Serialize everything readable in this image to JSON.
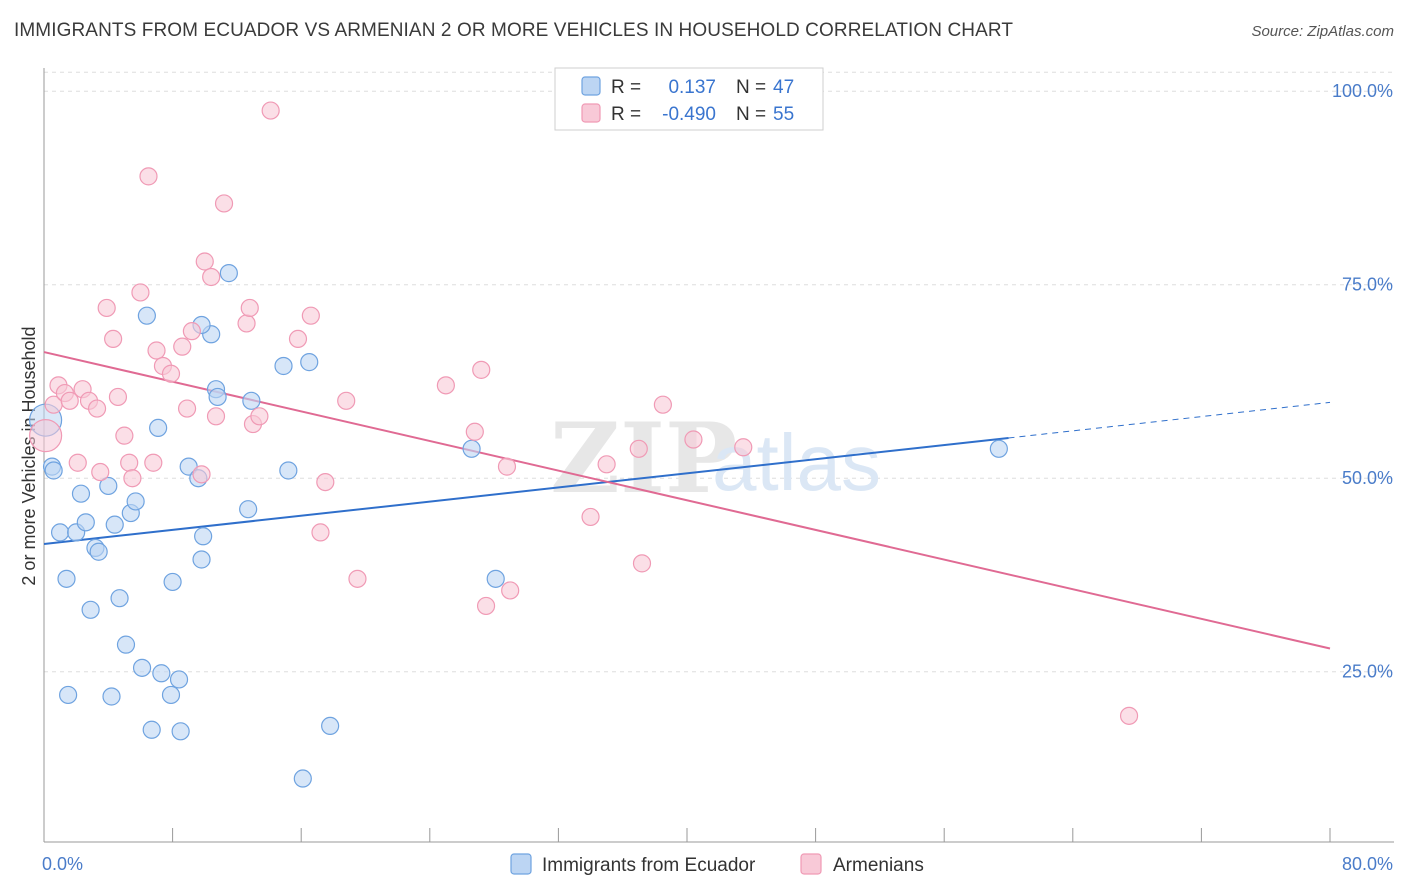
{
  "title": "IMMIGRANTS FROM ECUADOR VS ARMENIAN 2 OR MORE VEHICLES IN HOUSEHOLD CORRELATION CHART",
  "source": "Source: ZipAtlas.com",
  "watermark": {
    "zip": "ZIP",
    "atlas": "atlas"
  },
  "chart_data": {
    "type": "scatter",
    "title": "IMMIGRANTS FROM ECUADOR VS ARMENIAN 2 OR MORE VEHICLES IN HOUSEHOLD CORRELATION CHART",
    "xlabel": "",
    "ylabel": "2 or more Vehicles in Household",
    "xlim": [
      0,
      80
    ],
    "ylim": [
      3,
      103
    ],
    "x_tick_labels": [
      {
        "value": 0,
        "label": "0.0%"
      },
      {
        "value": 80,
        "label": "80.0%"
      }
    ],
    "x_minor_ticks": [
      0,
      8,
      16,
      24,
      32,
      40,
      48,
      56,
      64,
      72,
      80
    ],
    "y_ticks": [
      {
        "value": 100,
        "label": "100.0%"
      },
      {
        "value": 75,
        "label": "75.0%"
      },
      {
        "value": 50,
        "label": "50.0%"
      },
      {
        "value": 25,
        "label": "25.0%"
      }
    ],
    "grid": true,
    "legend_position": "top-center",
    "series": [
      {
        "name": "Immigrants from Ecuador",
        "color": "#6fa3e0",
        "fill": "#bcd5f3",
        "line_color": "#2f6fcb",
        "R": "0.137",
        "N": "47",
        "trend": {
          "x0": 0,
          "y0": 41.5,
          "x1": 60,
          "y1": 55.2,
          "dash_x1": 80,
          "dash_y1": 59.8
        },
        "points": [
          [
            0.1,
            57.5
          ],
          [
            0.5,
            51.5
          ],
          [
            0.6,
            51.0
          ],
          [
            1.0,
            43.0
          ],
          [
            1.4,
            37.0
          ],
          [
            1.5,
            22.0
          ],
          [
            2.0,
            43.0
          ],
          [
            2.3,
            48.0
          ],
          [
            2.6,
            44.3
          ],
          [
            2.9,
            33.0
          ],
          [
            3.2,
            41.0
          ],
          [
            3.4,
            40.5
          ],
          [
            4.0,
            49.0
          ],
          [
            4.4,
            44.0
          ],
          [
            4.7,
            34.5
          ],
          [
            5.1,
            28.5
          ],
          [
            5.4,
            45.5
          ],
          [
            5.7,
            47.0
          ],
          [
            6.1,
            25.5
          ],
          [
            6.4,
            71.0
          ],
          [
            6.7,
            17.5
          ],
          [
            7.1,
            56.5
          ],
          [
            7.3,
            24.8
          ],
          [
            7.9,
            22.0
          ],
          [
            8.0,
            36.6
          ],
          [
            8.4,
            24.0
          ],
          [
            8.5,
            17.3
          ],
          [
            9.0,
            51.5
          ],
          [
            9.6,
            50.0
          ],
          [
            9.9,
            42.5
          ],
          [
            9.8,
            39.5
          ],
          [
            10.7,
            61.5
          ],
          [
            10.8,
            60.5
          ],
          [
            11.5,
            76.5
          ],
          [
            12.7,
            46.0
          ],
          [
            12.9,
            60.0
          ],
          [
            14.9,
            64.5
          ],
          [
            15.2,
            51.0
          ],
          [
            16.5,
            65.0
          ],
          [
            17.8,
            18.0
          ],
          [
            16.1,
            11.2
          ],
          [
            26.6,
            53.8
          ],
          [
            28.1,
            37.0
          ],
          [
            59.4,
            53.8
          ],
          [
            10.4,
            68.6
          ],
          [
            9.8,
            69.8
          ],
          [
            4.2,
            21.8
          ]
        ]
      },
      {
        "name": "Armenians",
        "color": "#f09ab5",
        "fill": "#f8c9d7",
        "line_color": "#e06a93",
        "R": "-0.490",
        "N": "55",
        "trend": {
          "x0": 0,
          "y0": 66.3,
          "x1": 80,
          "y1": 28.0
        },
        "points": [
          [
            0.1,
            55.5
          ],
          [
            0.6,
            59.5
          ],
          [
            0.9,
            62.0
          ],
          [
            1.3,
            61.0
          ],
          [
            1.6,
            60.0
          ],
          [
            2.1,
            52.0
          ],
          [
            2.4,
            61.5
          ],
          [
            2.8,
            60.0
          ],
          [
            3.3,
            59.0
          ],
          [
            3.5,
            50.8
          ],
          [
            3.9,
            72.0
          ],
          [
            4.3,
            68.0
          ],
          [
            4.6,
            60.5
          ],
          [
            5.0,
            55.5
          ],
          [
            5.3,
            52.0
          ],
          [
            5.5,
            50.0
          ],
          [
            6.0,
            74.0
          ],
          [
            6.5,
            89.0
          ],
          [
            6.8,
            52.0
          ],
          [
            7.0,
            66.5
          ],
          [
            7.4,
            64.5
          ],
          [
            7.9,
            63.5
          ],
          [
            8.6,
            67.0
          ],
          [
            8.9,
            59.0
          ],
          [
            9.2,
            69.0
          ],
          [
            9.8,
            50.5
          ],
          [
            10.0,
            78.0
          ],
          [
            10.4,
            76.0
          ],
          [
            10.7,
            58.0
          ],
          [
            11.2,
            85.5
          ],
          [
            12.6,
            70.0
          ],
          [
            12.8,
            72.0
          ],
          [
            13.0,
            57.0
          ],
          [
            13.4,
            58.0
          ],
          [
            14.1,
            97.5
          ],
          [
            15.8,
            68.0
          ],
          [
            16.6,
            71.0
          ],
          [
            17.2,
            43.0
          ],
          [
            17.5,
            49.5
          ],
          [
            18.8,
            60.0
          ],
          [
            19.5,
            37.0
          ],
          [
            25.0,
            62.0
          ],
          [
            26.8,
            56.0
          ],
          [
            27.2,
            64.0
          ],
          [
            27.5,
            33.5
          ],
          [
            28.8,
            51.5
          ],
          [
            29.0,
            35.5
          ],
          [
            34.0,
            45.0
          ],
          [
            35.0,
            51.8
          ],
          [
            37.0,
            53.8
          ],
          [
            37.2,
            39.0
          ],
          [
            38.5,
            59.5
          ],
          [
            40.4,
            55.0
          ],
          [
            43.5,
            54.0
          ],
          [
            67.5,
            19.3
          ]
        ]
      }
    ]
  }
}
